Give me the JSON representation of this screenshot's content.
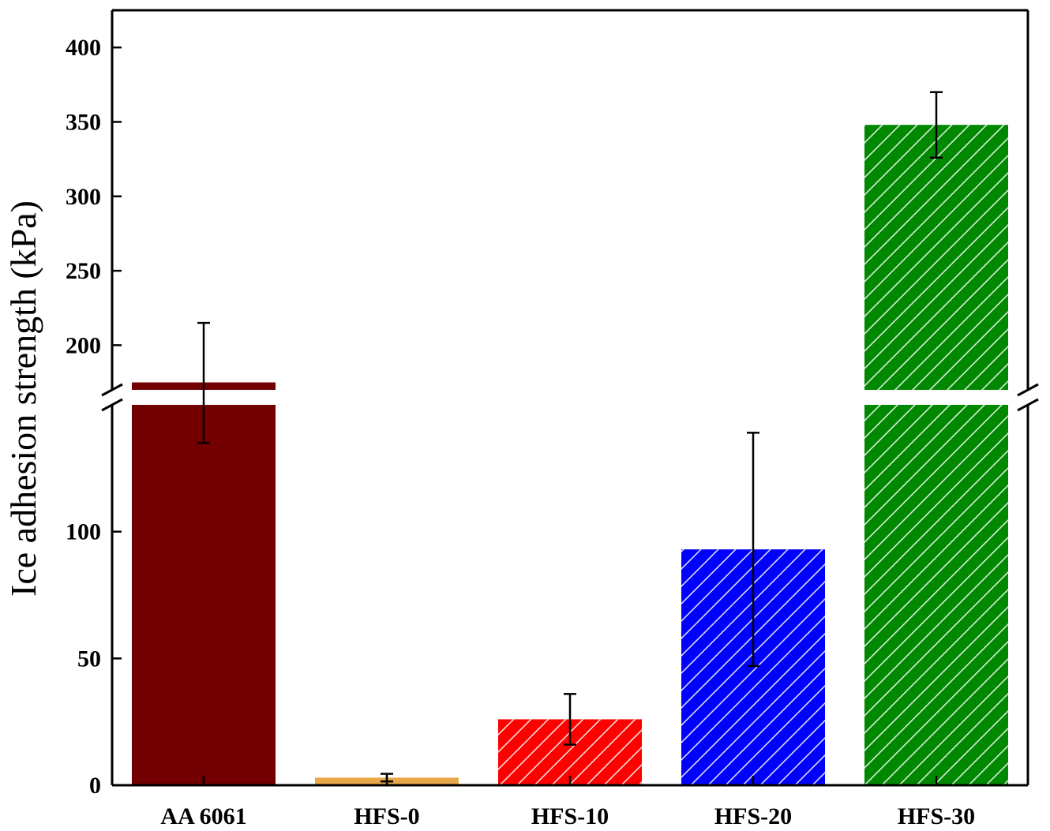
{
  "chart_data": {
    "type": "bar",
    "title": "",
    "xlabel": "",
    "ylabel": "Ice adhesion strength (kPa)",
    "categories": [
      "AA 6061",
      "HFS-0",
      "HFS-10",
      "HFS-20",
      "HFS-30"
    ],
    "values": [
      175,
      3,
      26,
      93,
      348
    ],
    "errors": [
      40,
      1.5,
      10,
      46,
      22
    ],
    "colors": [
      "#720000",
      "#e9a94a",
      "#ff0000",
      "#0000ff",
      "#008800"
    ],
    "hatched": [
      false,
      false,
      true,
      true,
      true
    ],
    "axis_break": {
      "lower": [
        0,
        150
      ],
      "upper": [
        170,
        425
      ]
    },
    "y_ticks_lower": [
      0,
      50,
      100
    ],
    "y_ticks_upper": [
      200,
      250,
      300,
      350,
      400
    ],
    "grid": false,
    "legend": "none"
  }
}
